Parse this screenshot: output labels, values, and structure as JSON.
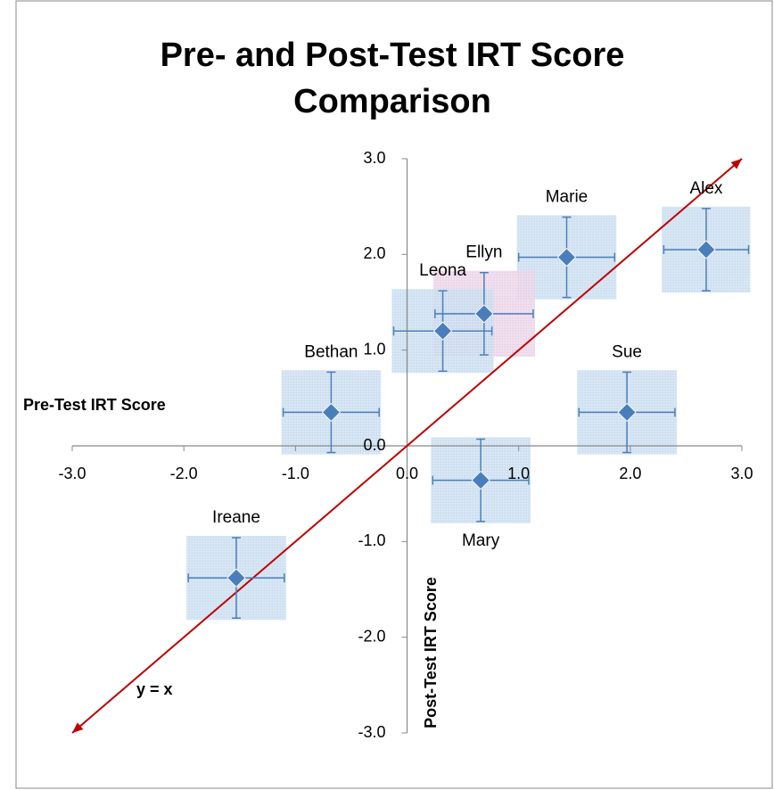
{
  "chart_data": {
    "type": "scatter",
    "title": [
      "Pre- and Post-Test IRT Score",
      "Comparison"
    ],
    "x_label": "Pre-Test IRT Score",
    "y_label": "Post-Test IRT Score",
    "xlim": [
      -3,
      3
    ],
    "ylim": [
      -3,
      3
    ],
    "xticks": [
      {
        "value": -3,
        "label": "-3.0"
      },
      {
        "value": -2,
        "label": "-2.0"
      },
      {
        "value": -1,
        "label": "-1.0"
      },
      {
        "value": 0,
        "label": "0.0"
      },
      {
        "value": 1,
        "label": "1.0"
      },
      {
        "value": 2,
        "label": "2.0"
      },
      {
        "value": 3,
        "label": "3.0"
      }
    ],
    "yticks": [
      {
        "value": -3,
        "label": "-3.0"
      },
      {
        "value": -2,
        "label": "-2.0"
      },
      {
        "value": -1,
        "label": "-1.0"
      },
      {
        "value": 0,
        "label": "0.0"
      },
      {
        "value": 1,
        "label": "1.0"
      },
      {
        "value": 2,
        "label": "2.0"
      },
      {
        "value": 3,
        "label": "3.0"
      }
    ],
    "marker_color": "#4a7ebb",
    "reference_line": {
      "label": "y = x",
      "color": "#c00000"
    },
    "points": [
      {
        "label": "Alex",
        "x": 2.68,
        "y": 2.05,
        "xerr": 0.38,
        "yerr": 0.43,
        "color": "#3f88c8",
        "box_color": "#c6dbef",
        "label_position": "above"
      },
      {
        "label": "Marie",
        "x": 1.43,
        "y": 1.97,
        "xerr": 0.43,
        "yerr": 0.42,
        "color": "#3f88c8",
        "box_color": "#c6dbef",
        "label_position": "above"
      },
      {
        "label": "Ellyn",
        "x": 0.69,
        "y": 1.38,
        "xerr": 0.44,
        "yerr": 0.43,
        "color": "#7b3fa0",
        "box_color": "#ead0e6",
        "label_position": "above"
      },
      {
        "label": "Leona",
        "x": 0.32,
        "y": 1.2,
        "xerr": 0.44,
        "yerr": 0.42,
        "color": "#3f88c8",
        "box_color": "#c6dbef",
        "label_position": "above"
      },
      {
        "label": "Bethan",
        "x": -0.68,
        "y": 0.35,
        "xerr": 0.43,
        "yerr": 0.42,
        "color": "#3f88c8",
        "box_color": "#c6dbef",
        "label_position": "above"
      },
      {
        "label": "Sue",
        "x": 1.97,
        "y": 0.35,
        "xerr": 0.43,
        "yerr": 0.42,
        "color": "#3f88c8",
        "box_color": "#c6dbef",
        "label_position": "above"
      },
      {
        "label": "Mary",
        "x": 0.66,
        "y": -0.36,
        "xerr": 0.43,
        "yerr": 0.43,
        "color": "#3f88c8",
        "box_color": "#c6dbef",
        "label_position": "below"
      },
      {
        "label": "Ireane",
        "x": -1.53,
        "y": -1.38,
        "xerr": 0.43,
        "yerr": 0.42,
        "color": "#3f88c8",
        "box_color": "#c6dbef",
        "label_position": "above"
      }
    ]
  }
}
